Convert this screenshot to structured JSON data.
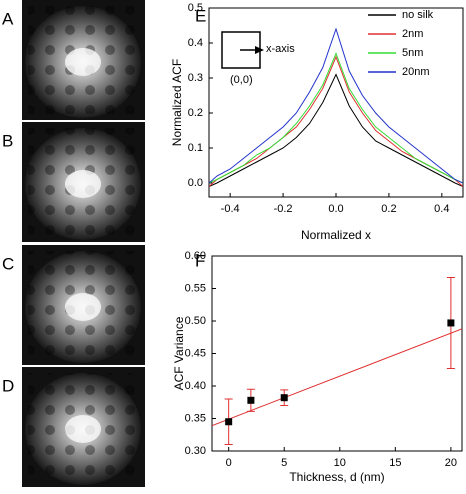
{
  "images": {
    "labels": [
      "A",
      "B",
      "C",
      "D"
    ]
  },
  "chart_data": [
    {
      "type": "line",
      "label": "E",
      "ylabel": "Normalized ACF",
      "xlabel": "Normalized x",
      "x": [
        -0.48,
        -0.45,
        -0.4,
        -0.35,
        -0.3,
        -0.25,
        -0.2,
        -0.15,
        -0.1,
        -0.05,
        0,
        0.05,
        0.1,
        0.15,
        0.2,
        0.25,
        0.3,
        0.35,
        0.4,
        0.45,
        0.48
      ],
      "series": [
        {
          "name": "no silk",
          "color": "#000000",
          "values": [
            -0.01,
            0.0,
            0.02,
            0.04,
            0.06,
            0.08,
            0.1,
            0.13,
            0.17,
            0.23,
            0.31,
            0.22,
            0.16,
            0.12,
            0.1,
            0.08,
            0.06,
            0.04,
            0.02,
            0.0,
            -0.01
          ]
        },
        {
          "name": "2nm",
          "color": "#e03030",
          "values": [
            -0.01,
            0.01,
            0.03,
            0.05,
            0.07,
            0.1,
            0.13,
            0.16,
            0.21,
            0.27,
            0.36,
            0.26,
            0.2,
            0.15,
            0.12,
            0.09,
            0.07,
            0.05,
            0.03,
            0.01,
            -0.01
          ]
        },
        {
          "name": "5nm",
          "color": "#33dd33",
          "values": [
            0,
            0.01,
            0.03,
            0.05,
            0.08,
            0.1,
            0.13,
            0.17,
            0.22,
            0.28,
            0.37,
            0.27,
            0.21,
            0.16,
            0.13,
            0.1,
            0.07,
            0.05,
            0.03,
            0.01,
            0
          ]
        },
        {
          "name": "20nm",
          "color": "#2233cc",
          "values": [
            0,
            0.02,
            0.04,
            0.07,
            0.1,
            0.13,
            0.16,
            0.2,
            0.26,
            0.33,
            0.44,
            0.32,
            0.25,
            0.2,
            0.16,
            0.13,
            0.1,
            0.07,
            0.04,
            0.01,
            0
          ]
        }
      ],
      "xlim": [
        -0.48,
        0.48
      ],
      "ylim": [
        -0.04,
        0.5
      ],
      "xticks": [
        -0.4,
        -0.2,
        {
          "value": 0,
          "label": "0.0"
        },
        0.2,
        0.4
      ],
      "yticks": [
        {
          "value": 0,
          "label": "0.0"
        },
        0.1,
        0.2,
        0.3,
        0.4,
        0.5
      ],
      "annotations": [
        "x-axis",
        "(0,0)"
      ],
      "legend": "upper right"
    },
    {
      "type": "scatter",
      "label": "F",
      "ylabel": "ACF Variance",
      "xlabel": "Thickness, d (nm)",
      "x": [
        0,
        2,
        5,
        20
      ],
      "series": [
        {
          "color": "#000000",
          "error_color": "#e03030",
          "values": [
            0.345,
            0.378,
            0.382,
            0.497
          ],
          "errors": [
            0.035,
            0.017,
            0.012,
            0.07
          ]
        }
      ],
      "fit": {
        "color": "#e03030",
        "x": [
          -1.5,
          21
        ],
        "values": [
          0.339,
          0.488
        ]
      },
      "xlim": [
        -1.5,
        21
      ],
      "ylim": [
        0.3,
        0.6
      ],
      "xticks": [
        0,
        5,
        10,
        15,
        20
      ],
      "yticks": [
        {
          "value": 0.3,
          "label": "0.30"
        },
        {
          "value": 0.35,
          "label": "0.35"
        },
        {
          "value": 0.4,
          "label": "0.40"
        },
        {
          "value": 0.45,
          "label": "0.45"
        },
        {
          "value": 0.5,
          "label": "0.50"
        },
        {
          "value": 0.55,
          "label": "0.55"
        },
        {
          "value": 0.6,
          "label": "0.60"
        }
      ]
    }
  ]
}
